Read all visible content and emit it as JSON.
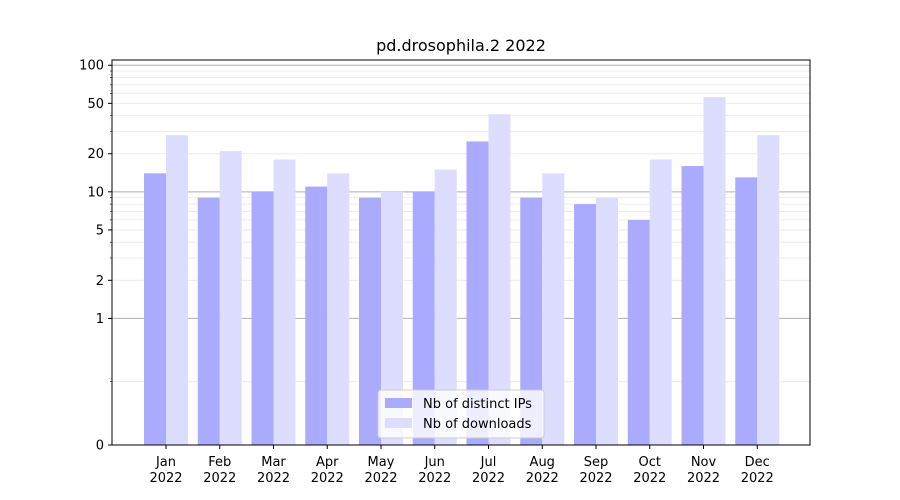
{
  "chart_data": {
    "type": "bar",
    "title": "pd.drosophila.2 2022",
    "xlabel": "",
    "ylabel": "",
    "y_scale": "symlog",
    "ylim": [
      0,
      110
    ],
    "y_ticks": [
      0,
      1,
      2,
      5,
      10,
      20,
      50,
      100
    ],
    "grid": "horizontal",
    "legend_position": "bottom-center",
    "categories": [
      [
        "Jan",
        "2022"
      ],
      [
        "Feb",
        "2022"
      ],
      [
        "Mar",
        "2022"
      ],
      [
        "Apr",
        "2022"
      ],
      [
        "May",
        "2022"
      ],
      [
        "Jun",
        "2022"
      ],
      [
        "Jul",
        "2022"
      ],
      [
        "Aug",
        "2022"
      ],
      [
        "Sep",
        "2022"
      ],
      [
        "Oct",
        "2022"
      ],
      [
        "Nov",
        "2022"
      ],
      [
        "Dec",
        "2022"
      ]
    ],
    "series": [
      {
        "name": "Nb of distinct IPs",
        "color": "#aaaaff",
        "values": [
          14,
          9,
          10,
          11,
          9,
          10,
          25,
          9,
          8,
          6,
          16,
          13
        ]
      },
      {
        "name": "Nb of downloads",
        "color": "#ddddff",
        "values": [
          28,
          21,
          18,
          14,
          10,
          15,
          41,
          14,
          9,
          18,
          56,
          28
        ]
      }
    ]
  }
}
